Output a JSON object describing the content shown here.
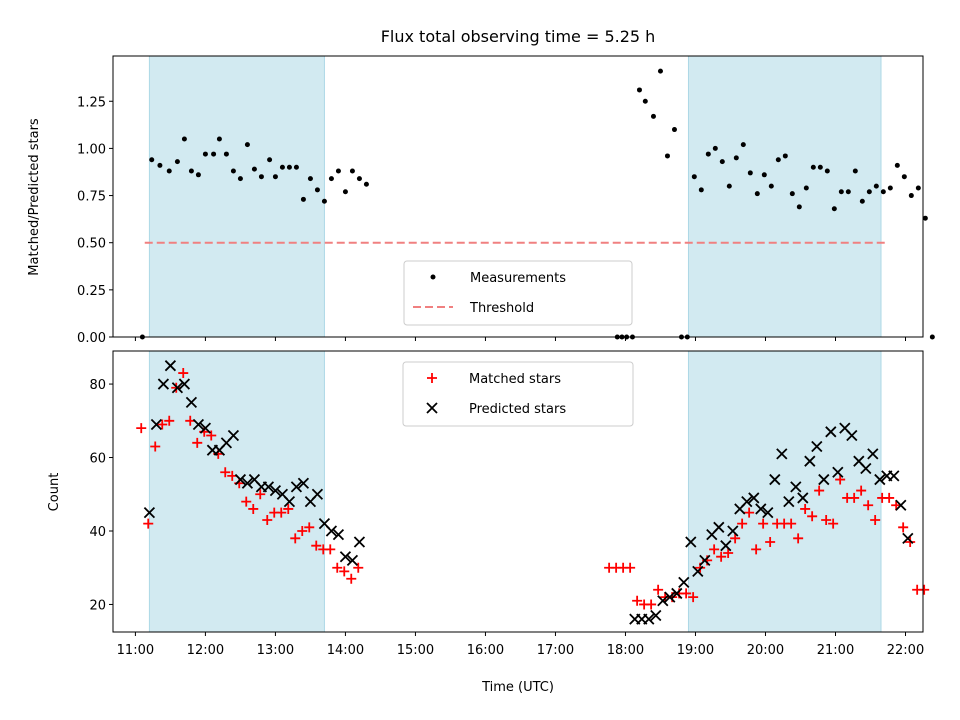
{
  "title": "Flux total observing time = 5.25 h",
  "colors": {
    "band": "#add8e6",
    "measurement": "#000000",
    "threshold": "#f08080",
    "matched": "#ff0000",
    "predicted": "#000000"
  },
  "chart_data": [
    {
      "type": "scatter",
      "ylabel": "Matched/Predicted stars",
      "xlim_hours": [
        10.68,
        22.25
      ],
      "ylim": [
        0,
        1.49
      ],
      "yticks": [
        "0.00",
        "0.25",
        "0.50",
        "0.75",
        "1.00",
        "1.25"
      ],
      "bands": [
        [
          "11:12",
          "13:42"
        ],
        [
          "18:54",
          "21:39"
        ]
      ],
      "legend": {
        "location": "lower center",
        "entries": [
          "Measurements",
          "Threshold"
        ]
      },
      "threshold": {
        "name": "Threshold",
        "value": 0.5,
        "x_range": [
          "11:08",
          "21:45"
        ]
      },
      "series": [
        {
          "name": "Measurements",
          "marker": "dot",
          "points": [
            [
              "11:06",
              0.0
            ],
            [
              "11:14",
              0.94
            ],
            [
              "11:21",
              0.91
            ],
            [
              "11:29",
              0.88
            ],
            [
              "11:36",
              0.93
            ],
            [
              "11:42",
              1.05
            ],
            [
              "11:48",
              0.88
            ],
            [
              "11:54",
              0.86
            ],
            [
              "12:00",
              0.97
            ],
            [
              "12:07",
              0.97
            ],
            [
              "12:12",
              1.05
            ],
            [
              "12:18",
              0.97
            ],
            [
              "12:24",
              0.88
            ],
            [
              "12:30",
              0.84
            ],
            [
              "12:36",
              1.02
            ],
            [
              "12:42",
              0.89
            ],
            [
              "12:48",
              0.85
            ],
            [
              "12:55",
              0.94
            ],
            [
              "13:00",
              0.85
            ],
            [
              "13:06",
              0.9
            ],
            [
              "13:12",
              0.9
            ],
            [
              "13:18",
              0.9
            ],
            [
              "13:24",
              0.73
            ],
            [
              "13:30",
              0.84
            ],
            [
              "13:36",
              0.78
            ],
            [
              "13:42",
              0.72
            ],
            [
              "13:48",
              0.84
            ],
            [
              "13:54",
              0.88
            ],
            [
              "14:00",
              0.77
            ],
            [
              "14:06",
              0.88
            ],
            [
              "14:12",
              0.84
            ],
            [
              "14:18",
              0.81
            ],
            [
              "17:53",
              0.0
            ],
            [
              "17:57",
              0.0
            ],
            [
              "18:01",
              0.0
            ],
            [
              "18:06",
              0.0
            ],
            [
              "18:12",
              1.31
            ],
            [
              "18:17",
              1.25
            ],
            [
              "18:24",
              1.17
            ],
            [
              "18:30",
              1.41
            ],
            [
              "18:36",
              0.96
            ],
            [
              "18:42",
              1.1
            ],
            [
              "18:48",
              0.0
            ],
            [
              "18:53",
              0.0
            ],
            [
              "18:59",
              0.85
            ],
            [
              "19:05",
              0.78
            ],
            [
              "19:11",
              0.97
            ],
            [
              "19:17",
              1.0
            ],
            [
              "19:23",
              0.93
            ],
            [
              "19:29",
              0.8
            ],
            [
              "19:35",
              0.95
            ],
            [
              "19:41",
              1.02
            ],
            [
              "19:47",
              0.87
            ],
            [
              "19:53",
              0.76
            ],
            [
              "19:59",
              0.86
            ],
            [
              "20:05",
              0.8
            ],
            [
              "20:11",
              0.94
            ],
            [
              "20:17",
              0.96
            ],
            [
              "20:23",
              0.76
            ],
            [
              "20:29",
              0.69
            ],
            [
              "20:35",
              0.79
            ],
            [
              "20:41",
              0.9
            ],
            [
              "20:47",
              0.9
            ],
            [
              "20:53",
              0.88
            ],
            [
              "20:59",
              0.68
            ],
            [
              "21:05",
              0.77
            ],
            [
              "21:11",
              0.77
            ],
            [
              "21:17",
              0.88
            ],
            [
              "21:23",
              0.72
            ],
            [
              "21:29",
              0.77
            ],
            [
              "21:35",
              0.8
            ],
            [
              "21:41",
              0.77
            ],
            [
              "21:47",
              0.79
            ],
            [
              "21:53",
              0.91
            ],
            [
              "21:59",
              0.85
            ],
            [
              "22:05",
              0.75
            ],
            [
              "22:11",
              0.79
            ],
            [
              "22:17",
              0.63
            ],
            [
              "22:23",
              0.0
            ]
          ]
        }
      ]
    },
    {
      "type": "scatter",
      "xlabel": "Time (UTC)",
      "ylabel": "Count",
      "xlim_hours": [
        10.68,
        22.25
      ],
      "ylim": [
        12.5,
        89
      ],
      "yticks": [
        "20",
        "40",
        "60",
        "80"
      ],
      "xticks": [
        "11:00",
        "12:00",
        "13:00",
        "14:00",
        "15:00",
        "16:00",
        "17:00",
        "18:00",
        "19:00",
        "20:00",
        "21:00",
        "22:00"
      ],
      "bands": [
        [
          "11:12",
          "13:42"
        ],
        [
          "18:54",
          "21:39"
        ]
      ],
      "legend": {
        "location": "upper center",
        "entries": [
          "Matched stars",
          "Predicted stars"
        ]
      },
      "series": [
        {
          "name": "Matched stars",
          "marker": "plus",
          "points": [
            [
              "11:05",
              68
            ],
            [
              "11:11",
              42
            ],
            [
              "11:17",
              63
            ],
            [
              "11:23",
              69
            ],
            [
              "11:29",
              70
            ],
            [
              "11:35",
              79
            ],
            [
              "11:41",
              83
            ],
            [
              "11:47",
              70
            ],
            [
              "11:53",
              64
            ],
            [
              "11:59",
              67
            ],
            [
              "12:05",
              66
            ],
            [
              "12:11",
              61
            ],
            [
              "12:17",
              56
            ],
            [
              "12:23",
              55
            ],
            [
              "12:29",
              53
            ],
            [
              "12:35",
              48
            ],
            [
              "12:41",
              46
            ],
            [
              "12:47",
              50
            ],
            [
              "12:53",
              43
            ],
            [
              "12:59",
              45
            ],
            [
              "13:05",
              45
            ],
            [
              "13:11",
              46
            ],
            [
              "13:17",
              38
            ],
            [
              "13:23",
              40
            ],
            [
              "13:29",
              41
            ],
            [
              "13:35",
              36
            ],
            [
              "13:41",
              35
            ],
            [
              "13:47",
              35
            ],
            [
              "13:53",
              30
            ],
            [
              "13:59",
              29
            ],
            [
              "14:05",
              27
            ],
            [
              "14:11",
              30
            ],
            [
              "17:46",
              30
            ],
            [
              "17:52",
              30
            ],
            [
              "17:58",
              30
            ],
            [
              "18:04",
              30
            ],
            [
              "18:10",
              21
            ],
            [
              "18:16",
              20
            ],
            [
              "18:22",
              20
            ],
            [
              "18:28",
              24
            ],
            [
              "18:34",
              22
            ],
            [
              "18:40",
              22
            ],
            [
              "18:46",
              23
            ],
            [
              "18:52",
              23
            ],
            [
              "18:58",
              22
            ],
            [
              "19:04",
              30
            ],
            [
              "19:10",
              32
            ],
            [
              "19:16",
              35
            ],
            [
              "19:22",
              33
            ],
            [
              "19:28",
              34
            ],
            [
              "19:34",
              38
            ],
            [
              "19:40",
              42
            ],
            [
              "19:46",
              45
            ],
            [
              "19:52",
              35
            ],
            [
              "19:58",
              42
            ],
            [
              "20:04",
              37
            ],
            [
              "20:10",
              42
            ],
            [
              "20:16",
              42
            ],
            [
              "20:22",
              42
            ],
            [
              "20:28",
              38
            ],
            [
              "20:34",
              46
            ],
            [
              "20:40",
              44
            ],
            [
              "20:46",
              51
            ],
            [
              "20:52",
              43
            ],
            [
              "20:58",
              42
            ],
            [
              "21:04",
              54
            ],
            [
              "21:10",
              49
            ],
            [
              "21:16",
              49
            ],
            [
              "21:22",
              51
            ],
            [
              "21:28",
              47
            ],
            [
              "21:34",
              43
            ],
            [
              "21:40",
              49
            ],
            [
              "21:46",
              49
            ],
            [
              "21:52",
              47
            ],
            [
              "21:58",
              41
            ],
            [
              "22:04",
              37
            ],
            [
              "22:10",
              24
            ],
            [
              "22:16",
              24
            ]
          ]
        },
        {
          "name": "Predicted stars",
          "marker": "x",
          "points": [
            [
              "11:12",
              45
            ],
            [
              "11:18",
              69
            ],
            [
              "11:24",
              80
            ],
            [
              "11:30",
              85
            ],
            [
              "11:36",
              79
            ],
            [
              "11:42",
              80
            ],
            [
              "11:48",
              75
            ],
            [
              "11:54",
              69
            ],
            [
              "12:00",
              68
            ],
            [
              "12:06",
              62
            ],
            [
              "12:12",
              62
            ],
            [
              "12:18",
              64
            ],
            [
              "12:24",
              66
            ],
            [
              "12:30",
              54
            ],
            [
              "12:36",
              53
            ],
            [
              "12:42",
              54
            ],
            [
              "12:48",
              52
            ],
            [
              "12:54",
              52
            ],
            [
              "13:00",
              51
            ],
            [
              "13:06",
              50
            ],
            [
              "13:12",
              48
            ],
            [
              "13:18",
              52
            ],
            [
              "13:24",
              53
            ],
            [
              "13:30",
              48
            ],
            [
              "13:36",
              50
            ],
            [
              "13:42",
              42
            ],
            [
              "13:48",
              40
            ],
            [
              "13:54",
              39
            ],
            [
              "14:00",
              33
            ],
            [
              "14:06",
              32
            ],
            [
              "14:12",
              37
            ],
            [
              "18:08",
              16
            ],
            [
              "18:14",
              16
            ],
            [
              "18:20",
              16
            ],
            [
              "18:26",
              17
            ],
            [
              "18:32",
              21
            ],
            [
              "18:38",
              22
            ],
            [
              "18:44",
              23
            ],
            [
              "18:50",
              26
            ],
            [
              "18:56",
              37
            ],
            [
              "19:02",
              29
            ],
            [
              "19:08",
              32
            ],
            [
              "19:14",
              39
            ],
            [
              "19:20",
              41
            ],
            [
              "19:26",
              36
            ],
            [
              "19:32",
              40
            ],
            [
              "19:38",
              46
            ],
            [
              "19:44",
              48
            ],
            [
              "19:50",
              49
            ],
            [
              "19:56",
              46
            ],
            [
              "20:02",
              45
            ],
            [
              "20:08",
              54
            ],
            [
              "20:14",
              61
            ],
            [
              "20:20",
              48
            ],
            [
              "20:26",
              52
            ],
            [
              "20:32",
              49
            ],
            [
              "20:38",
              59
            ],
            [
              "20:44",
              63
            ],
            [
              "20:50",
              54
            ],
            [
              "20:56",
              67
            ],
            [
              "21:02",
              56
            ],
            [
              "21:08",
              68
            ],
            [
              "21:14",
              66
            ],
            [
              "21:20",
              59
            ],
            [
              "21:26",
              57
            ],
            [
              "21:32",
              61
            ],
            [
              "21:38",
              54
            ],
            [
              "21:44",
              55
            ],
            [
              "21:50",
              55
            ],
            [
              "21:56",
              47
            ],
            [
              "22:02",
              38
            ]
          ]
        }
      ]
    }
  ]
}
